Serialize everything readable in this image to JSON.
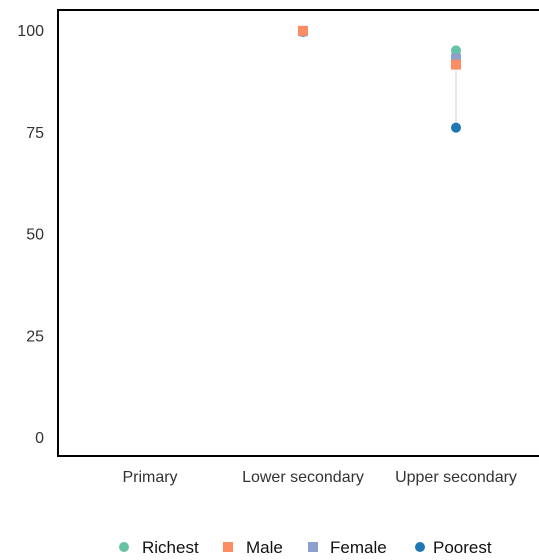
{
  "chart_data": {
    "type": "scatter",
    "categories": [
      "Primary",
      "Lower secondary",
      "Upper secondary"
    ],
    "y_ticks": [
      "0",
      "25",
      "50",
      "75",
      "100"
    ],
    "ylim": [
      0,
      105
    ],
    "grid": false,
    "legend_position": "bottom",
    "series": [
      {
        "name": "Richest",
        "marker": "circle",
        "color": "#66c2a5",
        "values": [
          null,
          99.6,
          95
        ]
      },
      {
        "name": "Male",
        "marker": "square",
        "color": "#fc8d62",
        "values": [
          null,
          99.8,
          91.5
        ]
      },
      {
        "name": "Female",
        "marker": "square",
        "color": "#8da0cb",
        "values": [
          null,
          99.7,
          93
        ]
      },
      {
        "name": "Poorest",
        "marker": "circle",
        "color": "#1f78b4",
        "values": [
          null,
          99.5,
          76
        ]
      }
    ],
    "range_line_color": "#d9d9d9"
  }
}
